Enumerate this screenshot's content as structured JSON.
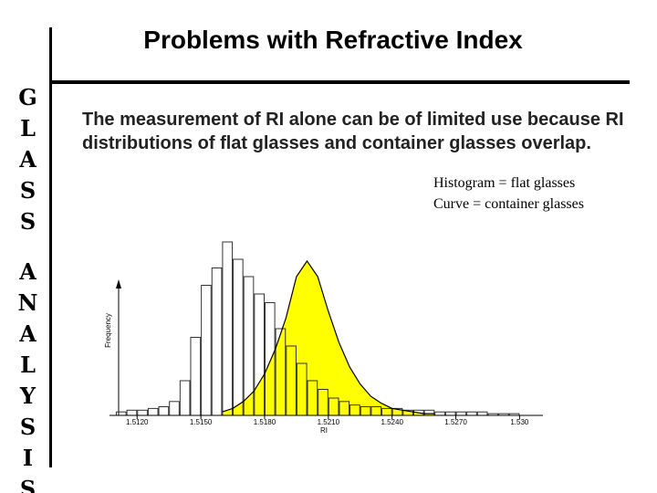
{
  "header": {
    "title": "Problems with Refractive Index"
  },
  "sidebar": {
    "words": [
      "GLASS",
      "ANALYSIS"
    ]
  },
  "body": {
    "text": "The measurement of RI alone can be of limited use because RI distributions of flat glasses and container glasses overlap.",
    "legend": [
      "Histogram = flat glasses",
      "Curve = container glasses"
    ]
  },
  "chart_data": {
    "type": "histogram",
    "x_label": "RI",
    "y_label": "Frequency",
    "bins": [
      1.511,
      1.5115,
      1.512,
      1.5125,
      1.513,
      1.5135,
      1.514,
      1.5145,
      1.515,
      1.5155,
      1.516,
      1.5165,
      1.517,
      1.5175,
      1.518,
      1.5185,
      1.519,
      1.5195,
      1.52,
      1.5205,
      1.521,
      1.5215,
      1.522,
      1.5225,
      1.523,
      1.5235,
      1.524,
      1.5245,
      1.525,
      1.5255,
      1.526,
      1.5265,
      1.527,
      1.5275,
      1.528,
      1.5285,
      1.529,
      1.5295,
      1.53
    ],
    "values": [
      2,
      3,
      3,
      4,
      5,
      8,
      20,
      45,
      75,
      85,
      100,
      90,
      80,
      70,
      65,
      50,
      40,
      30,
      20,
      15,
      10,
      8,
      6,
      5,
      5,
      4,
      4,
      3,
      3,
      3,
      2,
      2,
      2,
      2,
      2,
      1,
      1,
      1
    ],
    "color": "#333333",
    "curve": {
      "x": [
        1.516,
        1.5165,
        1.517,
        1.5175,
        1.518,
        1.5185,
        1.519,
        1.5195,
        1.52,
        1.5205,
        1.521,
        1.5215,
        1.522,
        1.5225,
        1.523,
        1.5235,
        1.524,
        1.5245,
        1.525,
        1.5255,
        1.526
      ],
      "values": [
        2,
        4,
        8,
        14,
        24,
        38,
        56,
        80,
        89,
        80,
        60,
        42,
        28,
        18,
        11,
        7,
        4,
        3,
        2,
        1,
        1
      ],
      "color": "#ffff00"
    },
    "xlim": [
      1.5107,
      1.5311
    ],
    "ylim": [
      0,
      110
    ],
    "xticks": [
      {
        "value": 1.512,
        "label": "1.5120"
      },
      {
        "value": 1.515,
        "label": "1.5150"
      },
      {
        "value": 1.518,
        "label": "1.5180"
      },
      {
        "value": 1.521,
        "label": "1.5210"
      },
      {
        "value": 1.524,
        "label": "1.5240"
      },
      {
        "value": 1.527,
        "label": "1.5270"
      },
      {
        "value": 1.53,
        "label": "1.530"
      }
    ]
  }
}
